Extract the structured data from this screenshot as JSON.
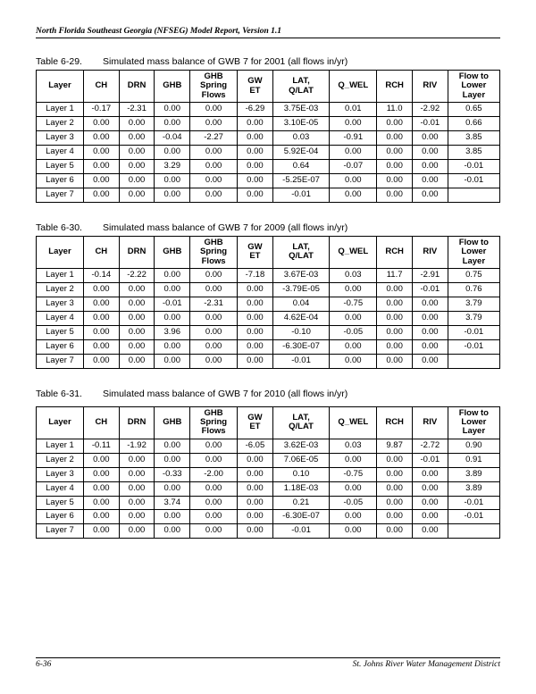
{
  "header": "North Florida Southeast Georgia (NFSEG) Model Report, Version 1.1",
  "footer": {
    "left": "6-36",
    "right": "St. Johns River Water Management District"
  },
  "columns": [
    "Layer",
    "CH",
    "DRN",
    "GHB",
    "GHB Spring Flows",
    "GW ET",
    "LAT, Q/LAT",
    "Q_WEL",
    "RCH",
    "RIV",
    "Flow to Lower Layer"
  ],
  "tables": [
    {
      "num": "Table 6-29.",
      "title": "Simulated mass balance of GWB 7 for 2001  (all flows in/yr)",
      "rows": [
        [
          "Layer 1",
          "-0.17",
          "-2.31",
          "0.00",
          "0.00",
          "-6.29",
          "3.75E-03",
          "0.01",
          "11.0",
          "-2.92",
          "0.65"
        ],
        [
          "Layer 2",
          "0.00",
          "0.00",
          "0.00",
          "0.00",
          "0.00",
          "3.10E-05",
          "0.00",
          "0.00",
          "-0.01",
          "0.66"
        ],
        [
          "Layer 3",
          "0.00",
          "0.00",
          "-0.04",
          "-2.27",
          "0.00",
          "0.03",
          "-0.91",
          "0.00",
          "0.00",
          "3.85"
        ],
        [
          "Layer 4",
          "0.00",
          "0.00",
          "0.00",
          "0.00",
          "0.00",
          "5.92E-04",
          "0.00",
          "0.00",
          "0.00",
          "3.85"
        ],
        [
          "Layer 5",
          "0.00",
          "0.00",
          "3.29",
          "0.00",
          "0.00",
          "0.64",
          "-0.07",
          "0.00",
          "0.00",
          "-0.01"
        ],
        [
          "Layer 6",
          "0.00",
          "0.00",
          "0.00",
          "0.00",
          "0.00",
          "-5.25E-07",
          "0.00",
          "0.00",
          "0.00",
          "-0.01"
        ],
        [
          "Layer 7",
          "0.00",
          "0.00",
          "0.00",
          "0.00",
          "0.00",
          "-0.01",
          "0.00",
          "0.00",
          "0.00",
          ""
        ]
      ]
    },
    {
      "num": "Table 6-30.",
      "title": "Simulated mass balance of GWB 7 for 2009 (all flows in/yr)",
      "rows": [
        [
          "Layer 1",
          "-0.14",
          "-2.22",
          "0.00",
          "0.00",
          "-7.18",
          "3.67E-03",
          "0.03",
          "11.7",
          "-2.91",
          "0.75"
        ],
        [
          "Layer 2",
          "0.00",
          "0.00",
          "0.00",
          "0.00",
          "0.00",
          "-3.79E-05",
          "0.00",
          "0.00",
          "-0.01",
          "0.76"
        ],
        [
          "Layer 3",
          "0.00",
          "0.00",
          "-0.01",
          "-2.31",
          "0.00",
          "0.04",
          "-0.75",
          "0.00",
          "0.00",
          "3.79"
        ],
        [
          "Layer 4",
          "0.00",
          "0.00",
          "0.00",
          "0.00",
          "0.00",
          "4.62E-04",
          "0.00",
          "0.00",
          "0.00",
          "3.79"
        ],
        [
          "Layer 5",
          "0.00",
          "0.00",
          "3.96",
          "0.00",
          "0.00",
          "-0.10",
          "-0.05",
          "0.00",
          "0.00",
          "-0.01"
        ],
        [
          "Layer 6",
          "0.00",
          "0.00",
          "0.00",
          "0.00",
          "0.00",
          "-6.30E-07",
          "0.00",
          "0.00",
          "0.00",
          "-0.01"
        ],
        [
          "Layer 7",
          "0.00",
          "0.00",
          "0.00",
          "0.00",
          "0.00",
          "-0.01",
          "0.00",
          "0.00",
          "0.00",
          ""
        ]
      ]
    },
    {
      "num": "Table 6-31.",
      "title": "Simulated mass balance of GWB 7 for 2010  (all flows in/yr)",
      "rows": [
        [
          "Layer 1",
          "-0.11",
          "-1.92",
          "0.00",
          "0.00",
          "-6.05",
          "3.62E-03",
          "0.03",
          "9.87",
          "-2.72",
          "0.90"
        ],
        [
          "Layer 2",
          "0.00",
          "0.00",
          "0.00",
          "0.00",
          "0.00",
          "7.06E-05",
          "0.00",
          "0.00",
          "-0.01",
          "0.91"
        ],
        [
          "Layer 3",
          "0.00",
          "0.00",
          "-0.33",
          "-2.00",
          "0.00",
          "0.10",
          "-0.75",
          "0.00",
          "0.00",
          "3.89"
        ],
        [
          "Layer 4",
          "0.00",
          "0.00",
          "0.00",
          "0.00",
          "0.00",
          "1.18E-03",
          "0.00",
          "0.00",
          "0.00",
          "3.89"
        ],
        [
          "Layer 5",
          "0.00",
          "0.00",
          "3.74",
          "0.00",
          "0.00",
          "0.21",
          "-0.05",
          "0.00",
          "0.00",
          "-0.01"
        ],
        [
          "Layer 6",
          "0.00",
          "0.00",
          "0.00",
          "0.00",
          "0.00",
          "-6.30E-07",
          "0.00",
          "0.00",
          "0.00",
          "-0.01"
        ],
        [
          "Layer 7",
          "0.00",
          "0.00",
          "0.00",
          "0.00",
          "0.00",
          "-0.01",
          "0.00",
          "0.00",
          "0.00",
          ""
        ]
      ]
    }
  ]
}
